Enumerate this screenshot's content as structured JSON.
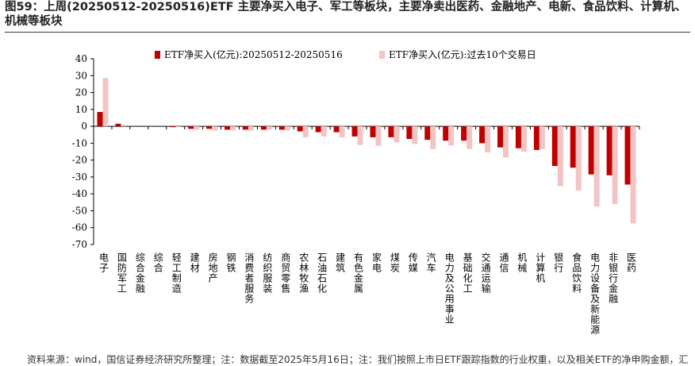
{
  "chart_data": {
    "type": "bar",
    "title": "图59：上周(20250512-20250516)ETF 主要净买入电子、军工等板块，主要净卖出医药、金融地产、电新、食品饮料、计算机、机械等板块",
    "source": "资料来源：wind，国信证券经济研究所整理；注：数据截至2025年5月16日；注：我们按照上市日ETF跟踪指数的行业权重，以及相关ETF的净申购金额，汇",
    "categories": [
      "电子",
      "国防军工",
      "综合金融",
      "综合",
      "轻工制造",
      "建材",
      "房地产",
      "钢铁",
      "消费者服务",
      "纺织服装",
      "商贸零售",
      "农林牧渔",
      "石油石化",
      "建筑",
      "有色金属",
      "家电",
      "煤炭",
      "传媒",
      "汽车",
      "电力及公用事业",
      "基础化工",
      "交通运输",
      "通信",
      "机械",
      "计算机",
      "银行",
      "食品饮料",
      "电力设备及新能源",
      "非银行金融",
      "医药"
    ],
    "series": [
      {
        "name": "ETF净买入(亿元):20250512-20250516",
        "color": "#c00000",
        "values": [
          8.5,
          1.5,
          0,
          0,
          -0.5,
          -1.5,
          -1.5,
          -2,
          -2,
          -2,
          -2,
          -3,
          -3.5,
          -3.5,
          -6,
          -6.5,
          -6.5,
          -7.5,
          -8,
          -8.5,
          -8.5,
          -10,
          -12.5,
          -13,
          -14,
          -23.5,
          -24.5,
          -28.5,
          -29,
          -34.5
        ]
      },
      {
        "name": "ETF净买入(亿元):过去10个交易日",
        "color": "#f2c4c4",
        "values": [
          28.5,
          1,
          0,
          0,
          -0.5,
          -2,
          -2.5,
          -2.5,
          -2.5,
          -2,
          -2.5,
          -6.5,
          -6,
          -6.5,
          -11,
          -11.5,
          -9.5,
          -10.5,
          -13.5,
          -11.5,
          -13.5,
          -15.5,
          -18.5,
          -15,
          -13.5,
          -35.5,
          -38,
          -47.5,
          -46,
          -57.5
        ]
      }
    ],
    "ylim": [
      -70,
      40
    ],
    "yticks": [
      -70,
      -60,
      -50,
      -40,
      -30,
      -20,
      -10,
      0,
      10,
      20,
      30,
      40
    ]
  }
}
